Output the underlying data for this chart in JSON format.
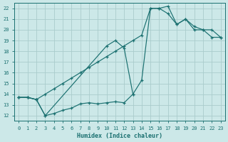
{
  "xlabel": "Humidex (Indice chaleur)",
  "bg_color": "#cce8e8",
  "grid_color": "#b8d8d8",
  "line_color": "#1a7070",
  "xlim": [
    -0.5,
    23.5
  ],
  "ylim": [
    11.5,
    22.5
  ],
  "xticks": [
    0,
    1,
    2,
    3,
    4,
    5,
    6,
    7,
    8,
    9,
    10,
    11,
    12,
    13,
    14,
    15,
    16,
    17,
    18,
    19,
    20,
    21,
    22,
    23
  ],
  "yticks": [
    12,
    13,
    14,
    15,
    16,
    17,
    18,
    19,
    20,
    21,
    22
  ],
  "series1_x": [
    0,
    1,
    2,
    3,
    4,
    5,
    6,
    7,
    8,
    9,
    10,
    11,
    12,
    13
  ],
  "series1_y": [
    13.7,
    13.7,
    13.5,
    12.0,
    12.2,
    12.5,
    12.7,
    13.1,
    13.2,
    13.1,
    13.2,
    13.3,
    13.2,
    14.0
  ],
  "series2_x": [
    0,
    1,
    2,
    3,
    4,
    5,
    6,
    7,
    8,
    9,
    10,
    11,
    12,
    13,
    14,
    15,
    16,
    17,
    18,
    19,
    20,
    21,
    22,
    23
  ],
  "series2_y": [
    13.7,
    13.7,
    13.5,
    14.0,
    14.5,
    15.0,
    15.5,
    16.0,
    16.5,
    17.0,
    17.5,
    18.0,
    18.5,
    19.0,
    19.5,
    22.0,
    22.0,
    22.2,
    20.5,
    21.0,
    20.0,
    20.0,
    19.3,
    19.3
  ],
  "series3_x": [
    0,
    1,
    2,
    3,
    10,
    11,
    12,
    13,
    14,
    15,
    16,
    17,
    18,
    19,
    20,
    21,
    22,
    23
  ],
  "series3_y": [
    13.7,
    13.7,
    13.5,
    12.0,
    18.5,
    19.0,
    18.3,
    14.0,
    15.3,
    22.0,
    22.0,
    21.5,
    20.5,
    21.0,
    20.3,
    20.0,
    20.0,
    19.3
  ]
}
